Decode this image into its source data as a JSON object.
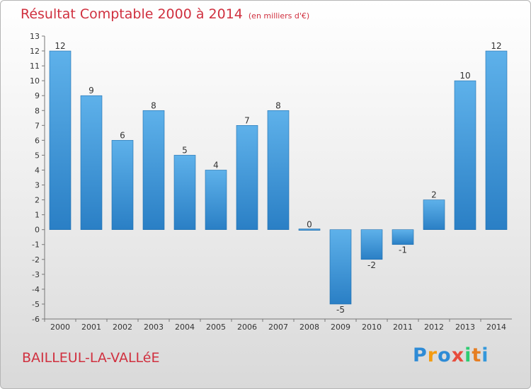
{
  "header": {
    "title": "Résultat Comptable 2000 à 2014",
    "subtitle": "(en milliers d'€)"
  },
  "footer": {
    "place": "BAILLEUL-LA-VALLéE",
    "logo": [
      "P",
      "r",
      "o",
      "x",
      "i",
      "t",
      "i"
    ],
    "logo_colors": [
      "#2e8bd6",
      "#f39c12",
      "#2e8bd6",
      "#e74c3c",
      "#2ecc71",
      "#e67e22",
      "#3498db"
    ]
  },
  "chart_data": {
    "type": "bar",
    "title": "Résultat Comptable 2000 à 2014",
    "subtitle": "(en milliers d'€)",
    "categories": [
      "2000",
      "2001",
      "2002",
      "2003",
      "2004",
      "2005",
      "2006",
      "2007",
      "2008",
      "2009",
      "2010",
      "2011",
      "2012",
      "2013",
      "2014"
    ],
    "values": [
      12,
      9,
      6,
      8,
      5,
      4,
      7,
      8,
      0,
      -5,
      -2,
      -1,
      2,
      10,
      12
    ],
    "ylim": [
      -6,
      13
    ],
    "yticks": [
      "13",
      "12",
      "11",
      "10",
      "9",
      "8",
      "7",
      "6",
      "5",
      "4",
      "3",
      "2",
      "1",
      "0",
      "-1",
      "-2",
      "-3",
      "-4",
      "-5",
      "-6"
    ],
    "xlabel": "",
    "ylabel": "",
    "grid": false,
    "bar_color_top": "#5eb1ea",
    "bar_color_bottom": "#2a7fc5"
  }
}
